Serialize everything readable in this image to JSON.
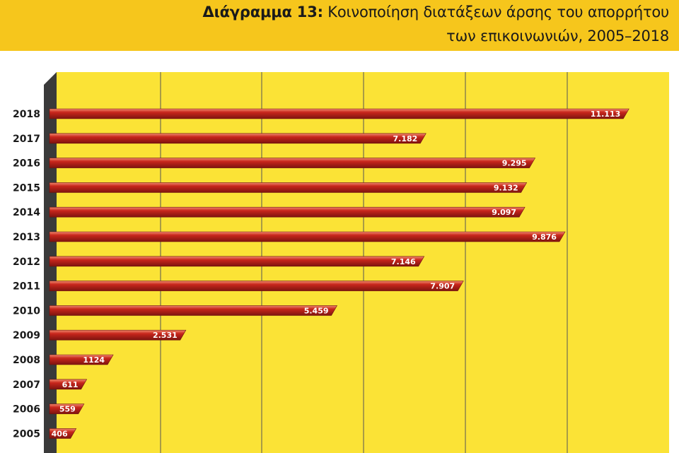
{
  "header": {
    "title_lead": "Διάγραμμα 13:",
    "title_rest": " Κοινοποίηση διατάξεων άρσης του απορρήτου",
    "title_line2": "των επικοινωνιών, 2005–2018"
  },
  "colors": {
    "title_band": "#f6c61c",
    "plot_bg": "#fbe336",
    "bar": "#c8261c",
    "bar_dark": "#7e1410",
    "bar_light": "#f08a6e",
    "wall": "#3a3a3a"
  },
  "chart_data": {
    "type": "bar",
    "orientation": "horizontal",
    "title": "Διάγραμμα 13: Κοινοποίηση διατάξεων άρσης του απορρήτου των επικοινωνιών, 2005–2018",
    "categories": [
      "2018",
      "2017",
      "2016",
      "2015",
      "2014",
      "2013",
      "2012",
      "2011",
      "2010",
      "2009",
      "2008",
      "2007",
      "2006",
      "2005"
    ],
    "values": [
      11113,
      7182,
      9295,
      9132,
      9097,
      9876,
      7146,
      7907,
      5459,
      2531,
      1124,
      611,
      559,
      406
    ],
    "value_labels": [
      "11.113",
      "7.182",
      "9.295",
      "9.132",
      "9.097",
      "9.876",
      "7.146",
      "7.907",
      "5.459",
      "2.531",
      "1124",
      "611",
      "559",
      "406"
    ],
    "xlim": [
      0,
      12000
    ],
    "grid": "vertical"
  }
}
